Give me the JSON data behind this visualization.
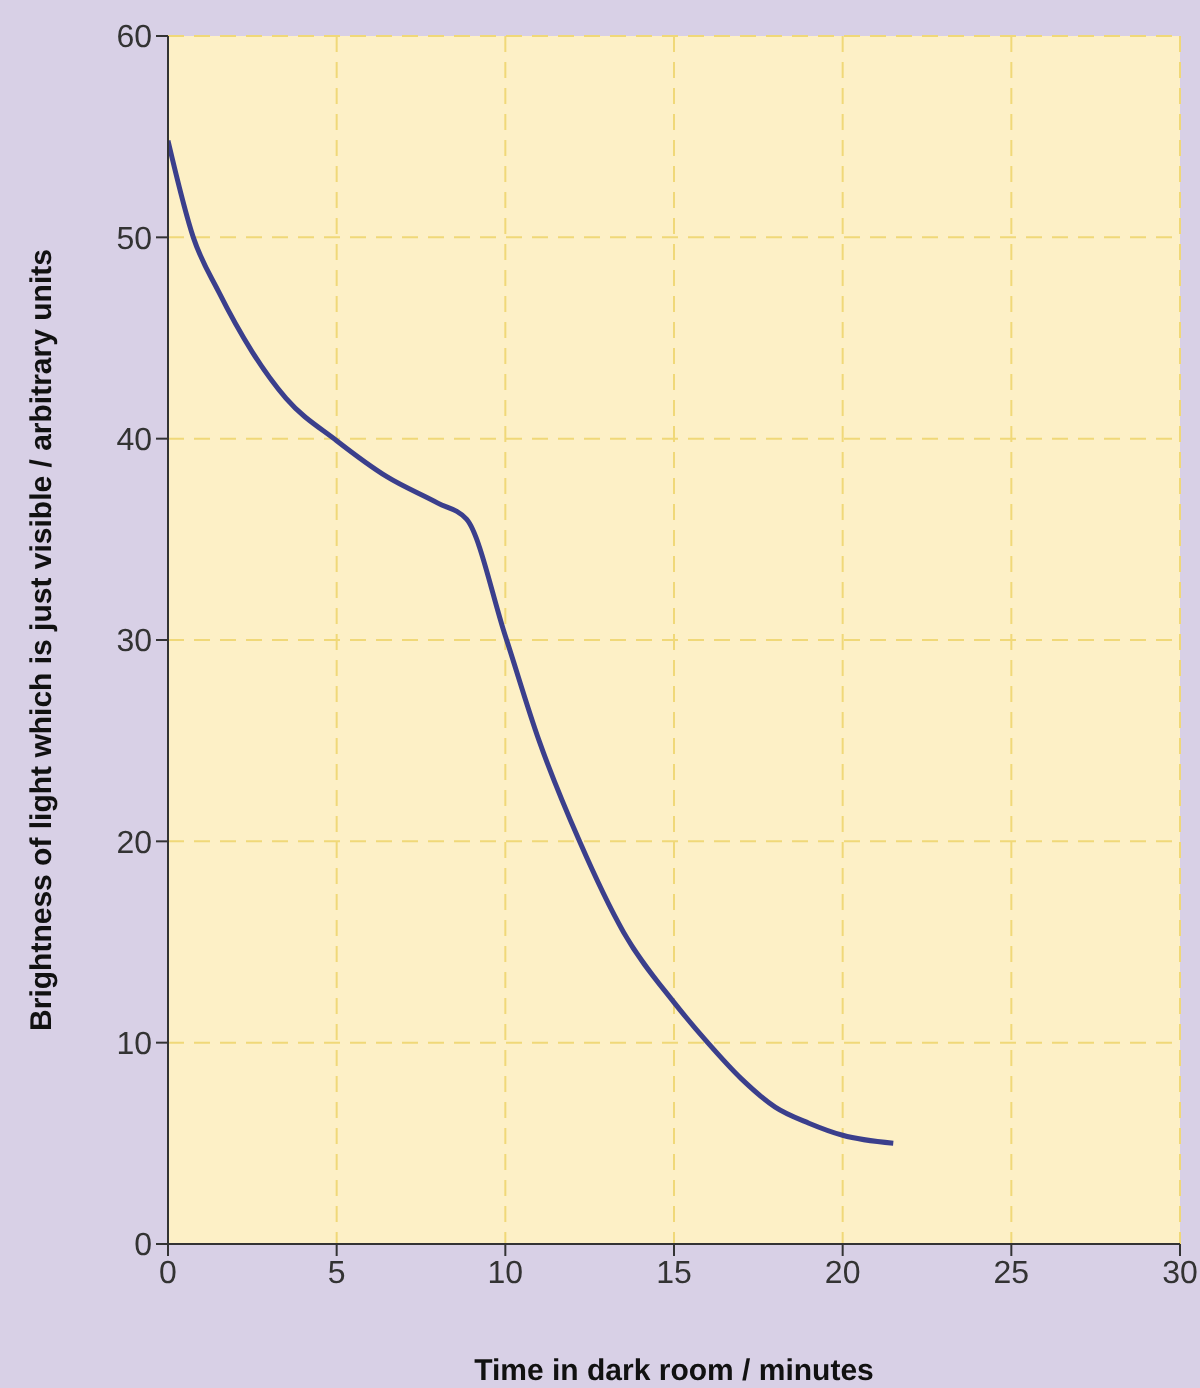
{
  "chart_data": {
    "type": "line",
    "xlabel": "Time in dark room / minutes",
    "ylabel": "Brightness of light which is just visible / arbitrary units",
    "x": [
      0,
      0.75,
      1.5,
      2.5,
      3.5,
      5,
      6.5,
      8,
      8.85,
      10,
      11,
      12.2,
      13.5,
      15,
      16,
      17,
      18,
      19,
      20,
      21.5
    ],
    "series": [
      {
        "color": "#3b3f8c",
        "values": [
          54.8,
          50,
          47.3,
          44.3,
          42,
          39.9,
          38.1,
          36.8,
          36,
          30.2,
          25,
          20,
          15.5,
          12,
          10,
          8.2,
          6.8,
          6,
          5.4,
          5
        ]
      }
    ],
    "xlim": [
      0,
      30
    ],
    "xticks": [
      0,
      5,
      10,
      15,
      20,
      25,
      30
    ],
    "ylim": [
      0,
      60
    ],
    "yticks": [
      0,
      10,
      20,
      30,
      40,
      50,
      60
    ],
    "grid": true,
    "line_style": "solid"
  }
}
